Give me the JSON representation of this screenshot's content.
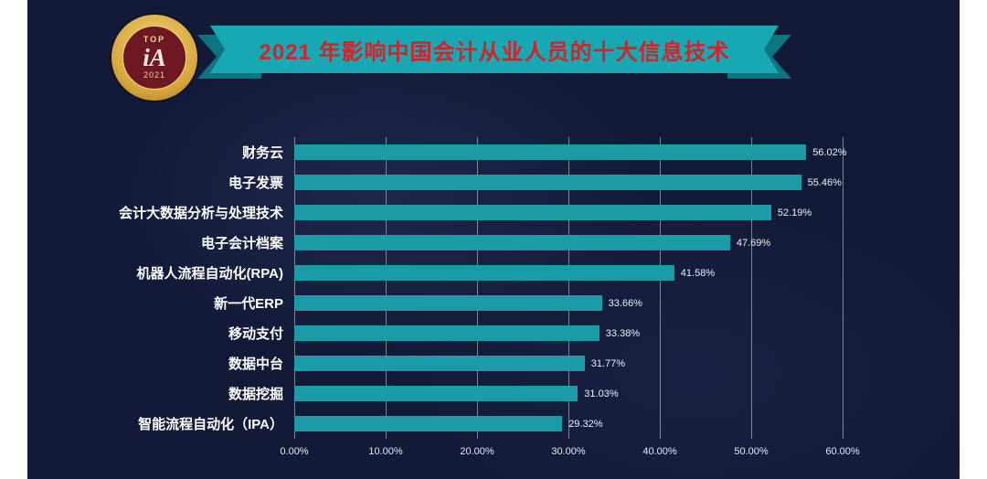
{
  "colors": {
    "canvas_bg": "#131a38",
    "side_margin": "#ffffff",
    "bar": "#1a9ba5",
    "ribbon": "#17a8b4",
    "ribbon_fold": "#0d7580",
    "title_red": "#d5232a",
    "badge_gold": "#d8a93f",
    "badge_maroon": "#6d1822",
    "gridline": "rgba(210,216,228,0.55)"
  },
  "header": {
    "title": "2021 年影响中国会计从业人员的十大信息技术",
    "badge": {
      "top": "TOP",
      "monogram": "iA",
      "year": "2021"
    }
  },
  "chart_data": {
    "type": "bar",
    "orientation": "horizontal",
    "title": "2021 年影响中国会计从业人员的十大信息技术",
    "categories": [
      "财务云",
      "电子发票",
      "会计大数据分析与处理技术",
      "电子会计档案",
      "机器人流程自动化(RPA)",
      "新一代ERP",
      "移动支付",
      "数据中台",
      "数据挖掘",
      "智能流程自动化（IPA）"
    ],
    "values": [
      56.02,
      55.46,
      52.19,
      47.69,
      41.58,
      33.66,
      33.38,
      31.77,
      31.03,
      29.32
    ],
    "value_labels": [
      "56.02%",
      "55.46%",
      "52.19%",
      "47.69%",
      "41.58%",
      "33.66%",
      "33.38%",
      "31.77%",
      "31.03%",
      "29.32%"
    ],
    "x_ticks": [
      "0.00%",
      "10.00%",
      "20.00%",
      "30.00%",
      "40.00%",
      "50.00%",
      "60.00%"
    ],
    "xlim": [
      0,
      60
    ],
    "grid": true,
    "legend": false
  }
}
